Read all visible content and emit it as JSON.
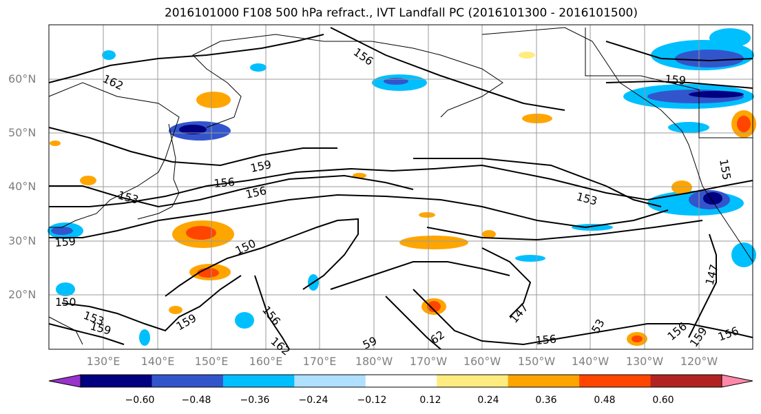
{
  "title": "2016101000 F108 500 hPa refract., IVT Landfall PC (2016101300 - 2016101500)",
  "lat_labels": [
    "60°N",
    "50°N",
    "40°N",
    "30°N",
    "20°N"
  ],
  "lon_labels": [
    "130°E",
    "140°E",
    "150°E",
    "160°E",
    "170°E",
    "180°W",
    "170°W",
    "160°W",
    "150°W",
    "140°W",
    "130°W",
    "120°W"
  ],
  "contour_labels": [
    "162",
    "156",
    "159",
    "159",
    "156",
    "153",
    "156",
    "159",
    "153",
    "150",
    "150",
    "153",
    "159",
    "159",
    "156",
    "162",
    "59",
    "62",
    "147",
    "53",
    "156",
    "156",
    "159",
    "156",
    "147",
    "155"
  ],
  "colorbar": {
    "ticks": [
      "−0.60",
      "−0.48",
      "−0.36",
      "−0.24",
      "−0.12",
      "0.12",
      "0.24",
      "0.36",
      "0.48",
      "0.60"
    ],
    "colors": [
      "#9933cc",
      "#000080",
      "#3355cc",
      "#00bfff",
      "#b0e0ff",
      "#ffffff",
      "#ffec80",
      "#ffa500",
      "#ff4500",
      "#b22222",
      "#ff88aa"
    ]
  }
}
